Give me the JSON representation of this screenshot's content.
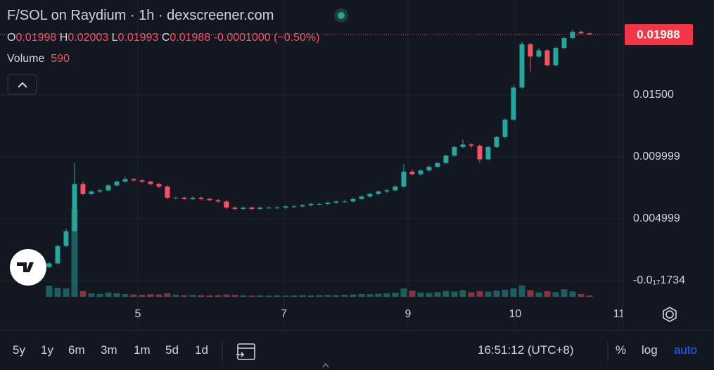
{
  "chart_data": {
    "type": "candlestick",
    "title": "F/SOL on Raydium · 1h · dexscreener.com",
    "ohlc_letters": [
      "O",
      "H",
      "L",
      "C"
    ],
    "change": "-0.0001000 (−0.50%)",
    "volume_label": "Volume",
    "up_color": "#26a69a",
    "down_color": "#f7525f",
    "ylim": [
      -0.001477,
      0.02267
    ],
    "yticks": [
      {
        "value": 0.015,
        "label": "0.01500"
      },
      0.009999,
      0.004999,
      {
        "value": -1.734e-18,
        "label": "-0.0₁₇1734"
      }
    ],
    "xlim": [
      -5.83,
      67.92
    ],
    "xticks": [
      {
        "value": 10.5,
        "label": "5"
      },
      {
        "value": 27.8,
        "label": "7"
      },
      {
        "value": 42.5,
        "label": "9"
      },
      {
        "value": 55.2,
        "label": "10"
      },
      {
        "value": 67.5,
        "label": "11"
      }
    ],
    "grid": true,
    "series": [
      {
        "name": "Price",
        "open": [
          0.0011,
          0.0014,
          0.0028,
          0.004,
          0.0078,
          0.007,
          0.0072,
          0.0073,
          0.0077,
          0.008,
          0.0082,
          0.0081,
          0.008,
          0.0078,
          0.0076,
          0.0067,
          0.0067,
          0.0066,
          0.0067,
          0.0066,
          0.0065,
          0.0064,
          0.0059,
          0.0058,
          0.0059,
          0.0058,
          0.0059,
          0.0059,
          0.0059,
          0.006,
          0.006,
          0.0061,
          0.0062,
          0.0062,
          0.0063,
          0.0064,
          0.0064,
          0.0066,
          0.0068,
          0.007,
          0.0072,
          0.0073,
          0.0076,
          0.0088,
          0.0086,
          0.0089,
          0.0092,
          0.0095,
          0.0101,
          0.0108,
          0.011,
          0.0109,
          0.0098,
          0.0108,
          0.0116,
          0.013,
          0.0156,
          0.0191,
          0.0181,
          0.0186,
          0.0174,
          0.0188,
          0.0196,
          0.0201,
          0.01998
        ],
        "high": [
          0.0015,
          0.0029,
          0.0042,
          0.0095,
          0.008,
          0.0073,
          0.0074,
          0.0078,
          0.0081,
          0.0084,
          0.0083,
          0.0082,
          0.0081,
          0.0079,
          0.0077,
          0.0068,
          0.0068,
          0.0068,
          0.0068,
          0.0067,
          0.0066,
          0.0065,
          0.006,
          0.006,
          0.006,
          0.006,
          0.006,
          0.006,
          0.0061,
          0.0061,
          0.0062,
          0.0063,
          0.0063,
          0.0064,
          0.0065,
          0.0065,
          0.0067,
          0.0069,
          0.0071,
          0.0073,
          0.0074,
          0.0077,
          0.0094,
          0.009,
          0.009,
          0.0093,
          0.0096,
          0.0102,
          0.0109,
          0.0114,
          0.0111,
          0.011,
          0.0109,
          0.0117,
          0.0131,
          0.0158,
          0.0193,
          0.0192,
          0.0188,
          0.0187,
          0.0189,
          0.0197,
          0.0203,
          0.0202,
          0.02003
        ],
        "low": [
          0.001,
          0.0013,
          0.0027,
          0.0039,
          0.0069,
          0.0069,
          0.0071,
          0.0072,
          0.0076,
          0.0079,
          0.008,
          0.0079,
          0.0077,
          0.0075,
          0.0066,
          0.0066,
          0.0065,
          0.0065,
          0.0065,
          0.0064,
          0.0063,
          0.0058,
          0.0057,
          0.0057,
          0.0057,
          0.0057,
          0.0058,
          0.0058,
          0.0058,
          0.0059,
          0.0059,
          0.006,
          0.0061,
          0.0061,
          0.0062,
          0.0063,
          0.0063,
          0.0065,
          0.0067,
          0.0069,
          0.0071,
          0.0072,
          0.0075,
          0.0085,
          0.0085,
          0.0088,
          0.0091,
          0.0094,
          0.01,
          0.0107,
          0.0107,
          0.0095,
          0.0097,
          0.0107,
          0.0115,
          0.0129,
          0.0155,
          0.0169,
          0.018,
          0.0173,
          0.0173,
          0.0187,
          0.0195,
          0.0199,
          0.01993
        ],
        "close": [
          0.0014,
          0.0028,
          0.004,
          0.0078,
          0.007,
          0.0072,
          0.0073,
          0.0077,
          0.008,
          0.0082,
          0.0081,
          0.008,
          0.0078,
          0.0076,
          0.0067,
          0.0067,
          0.0066,
          0.0067,
          0.0066,
          0.0065,
          0.0064,
          0.0059,
          0.0058,
          0.0059,
          0.0058,
          0.0059,
          0.0059,
          0.0059,
          0.006,
          0.006,
          0.0061,
          0.0062,
          0.0062,
          0.0063,
          0.0064,
          0.0064,
          0.0066,
          0.0068,
          0.007,
          0.0072,
          0.0073,
          0.0076,
          0.0088,
          0.0086,
          0.0089,
          0.0092,
          0.0095,
          0.0101,
          0.0108,
          0.011,
          0.0109,
          0.0098,
          0.0108,
          0.0116,
          0.013,
          0.0156,
          0.0191,
          0.0181,
          0.0186,
          0.0174,
          0.0188,
          0.0196,
          0.0201,
          0.01998,
          0.01988
        ]
      },
      {
        "name": "Volume",
        "values": [
          4700,
          3800,
          3500,
          36900,
          2400,
          1500,
          1200,
          1800,
          1500,
          1200,
          1000,
          900,
          1100,
          1000,
          1500,
          900,
          700,
          800,
          700,
          600,
          700,
          1000,
          800,
          600,
          500,
          600,
          500,
          600,
          500,
          600,
          700,
          600,
          700,
          800,
          700,
          900,
          1000,
          1200,
          1100,
          1300,
          1500,
          1700,
          3500,
          2600,
          1800,
          1700,
          2000,
          2500,
          2200,
          2800,
          1900,
          2400,
          2200,
          2600,
          3000,
          3600,
          4800,
          2800,
          1900,
          2400,
          2000,
          3200,
          2300,
          1200,
          590
        ]
      }
    ]
  },
  "toolbar": {
    "ranges": [
      "5y",
      "1y",
      "6m",
      "3m",
      "1m",
      "5d",
      "1d"
    ],
    "time": "16:51:12 (UTC+8)",
    "percent": "%",
    "log": "log",
    "auto": "auto"
  }
}
